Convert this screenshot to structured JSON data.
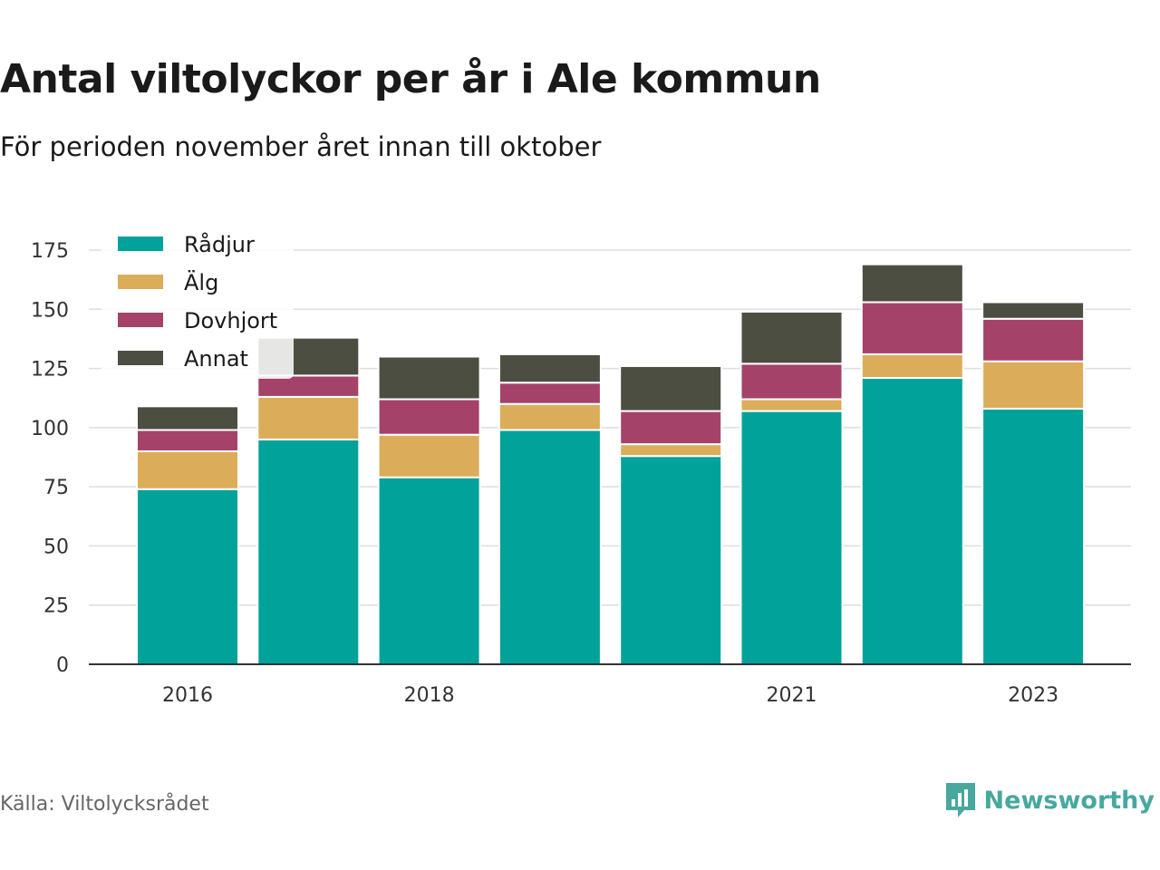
{
  "title": "Antal viltolyckor per år i Ale kommun",
  "subtitle": "För perioden november året innan till oktober",
  "source": "Källa: Viltolycksrådet",
  "brand": {
    "name": "Newsworthy",
    "icon": "bar-chart-logo-icon",
    "color": "#48a89e"
  },
  "chart_data": {
    "type": "bar",
    "stacked": true,
    "categories": [
      "2016",
      "2017",
      "2018",
      "2019",
      "2020",
      "2021",
      "2022",
      "2023"
    ],
    "x_tick_labels": [
      "2016",
      "2018",
      "2021",
      "2023"
    ],
    "series": [
      {
        "name": "Rådjur",
        "color": "#00a29a",
        "values": [
          74,
          95,
          79,
          99,
          88,
          107,
          121,
          108
        ]
      },
      {
        "name": "Älg",
        "color": "#dbad5a",
        "values": [
          16,
          18,
          18,
          11,
          5,
          5,
          10,
          20
        ]
      },
      {
        "name": "Dovhjort",
        "color": "#a4426a",
        "values": [
          9,
          9,
          15,
          9,
          14,
          15,
          22,
          18
        ]
      },
      {
        "name": "Annat",
        "color": "#4d4e42",
        "values": [
          10,
          16,
          18,
          12,
          19,
          22,
          16,
          7
        ]
      }
    ],
    "ylim": [
      0,
      175
    ],
    "yticks": [
      0,
      25,
      50,
      75,
      100,
      125,
      150,
      175
    ],
    "grid": true,
    "legend_position": "top-left"
  }
}
